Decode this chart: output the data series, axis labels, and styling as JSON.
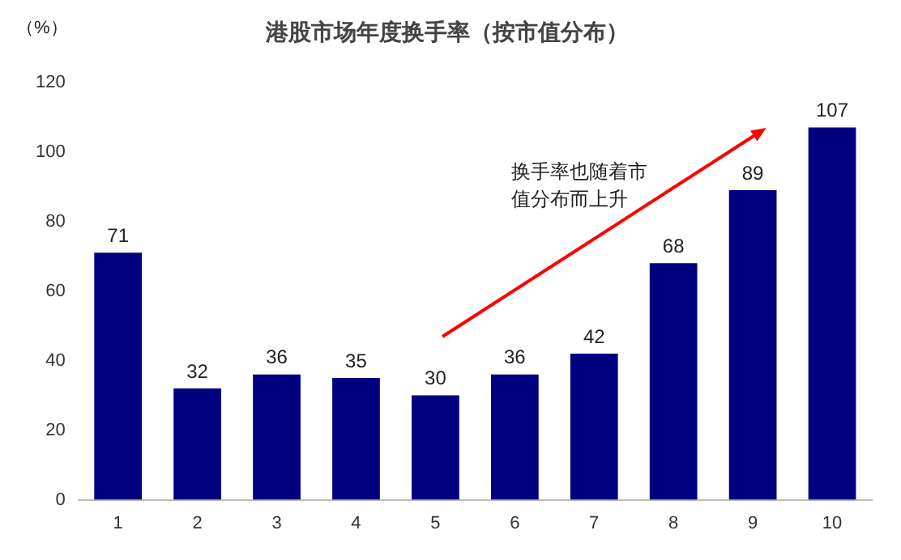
{
  "chart_data": {
    "type": "bar",
    "title": "港股市场年度换手率（按市值分布）",
    "ylabel": "（%）",
    "categories": [
      "1",
      "2",
      "3",
      "4",
      "5",
      "6",
      "7",
      "8",
      "9",
      "10"
    ],
    "values": [
      71,
      32,
      36,
      35,
      30,
      36,
      42,
      68,
      89,
      107
    ],
    "color": "#000080",
    "ylim": [
      0,
      120
    ],
    "yticks": [
      0,
      20,
      40,
      60,
      80,
      100,
      120
    ],
    "grid": false,
    "legend": false,
    "data_labels": true,
    "annotations": [
      "换手率也随着市值分布而上升"
    ]
  }
}
